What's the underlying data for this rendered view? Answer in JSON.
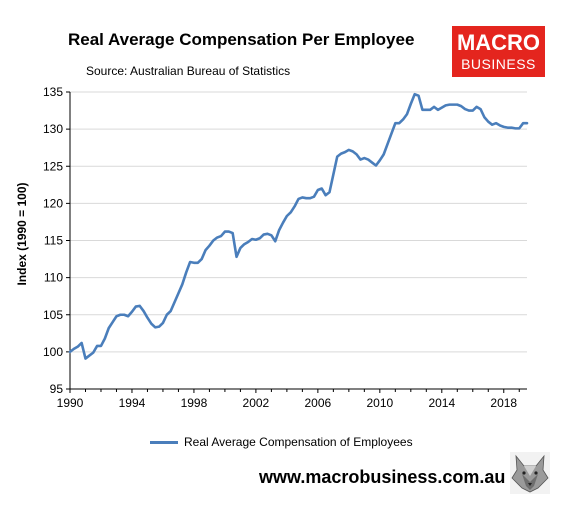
{
  "header": {
    "title": "Real Average Compensation Per Employee",
    "source": "Source: Australian Bureau of Statistics"
  },
  "logo": {
    "line1": "MACRO",
    "line2": "BUSINESS"
  },
  "footer": {
    "website": "www.macrobusiness.com.au"
  },
  "colors": {
    "series": "#4a7ebb",
    "brand": "#e4251e",
    "grid": "#d9d9d9"
  },
  "chart_data": {
    "type": "line",
    "title": "Real Average Compensation Per Employee",
    "ylabel": "Index (1990 = 100)",
    "xlabel": "",
    "xlim": [
      1990,
      2019.5
    ],
    "ylim": [
      95,
      135
    ],
    "x_ticks": [
      "1990",
      "1994",
      "1998",
      "2002",
      "2006",
      "2010",
      "2014",
      "2018"
    ],
    "y_ticks": [
      "95",
      "100",
      "105",
      "110",
      "115",
      "120",
      "125",
      "130",
      "135"
    ],
    "grid": "horizontal",
    "legend_position": "bottom",
    "series": [
      {
        "name": "Real Average Compensation of Employees",
        "color": "#4a7ebb",
        "points": [
          [
            1990.0,
            100.0
          ],
          [
            1990.25,
            100.4
          ],
          [
            1990.5,
            100.7
          ],
          [
            1990.75,
            101.2
          ],
          [
            1991.0,
            99.1
          ],
          [
            1991.25,
            99.5
          ],
          [
            1991.5,
            99.9
          ],
          [
            1991.75,
            100.8
          ],
          [
            1992.0,
            100.8
          ],
          [
            1992.25,
            101.8
          ],
          [
            1992.5,
            103.2
          ],
          [
            1992.75,
            104.0
          ],
          [
            1993.0,
            104.8
          ],
          [
            1993.25,
            105.0
          ],
          [
            1993.5,
            105.0
          ],
          [
            1993.75,
            104.8
          ],
          [
            1994.0,
            105.4
          ],
          [
            1994.25,
            106.1
          ],
          [
            1994.5,
            106.2
          ],
          [
            1994.75,
            105.5
          ],
          [
            1995.0,
            104.6
          ],
          [
            1995.25,
            103.8
          ],
          [
            1995.5,
            103.3
          ],
          [
            1995.75,
            103.4
          ],
          [
            1996.0,
            103.9
          ],
          [
            1996.25,
            105.0
          ],
          [
            1996.5,
            105.5
          ],
          [
            1996.75,
            106.7
          ],
          [
            1997.0,
            107.9
          ],
          [
            1997.25,
            109.1
          ],
          [
            1997.5,
            110.7
          ],
          [
            1997.75,
            112.1
          ],
          [
            1998.0,
            112.0
          ],
          [
            1998.25,
            112.0
          ],
          [
            1998.5,
            112.5
          ],
          [
            1998.75,
            113.7
          ],
          [
            1999.0,
            114.3
          ],
          [
            1999.25,
            115.0
          ],
          [
            1999.5,
            115.4
          ],
          [
            1999.75,
            115.6
          ],
          [
            2000.0,
            116.2
          ],
          [
            2000.25,
            116.2
          ],
          [
            2000.5,
            116.0
          ],
          [
            2000.75,
            112.8
          ],
          [
            2001.0,
            114.0
          ],
          [
            2001.25,
            114.5
          ],
          [
            2001.5,
            114.8
          ],
          [
            2001.75,
            115.2
          ],
          [
            2002.0,
            115.1
          ],
          [
            2002.25,
            115.3
          ],
          [
            2002.5,
            115.8
          ],
          [
            2002.75,
            115.9
          ],
          [
            2003.0,
            115.7
          ],
          [
            2003.25,
            114.9
          ],
          [
            2003.5,
            116.4
          ],
          [
            2003.75,
            117.4
          ],
          [
            2004.0,
            118.3
          ],
          [
            2004.25,
            118.8
          ],
          [
            2004.5,
            119.6
          ],
          [
            2004.75,
            120.6
          ],
          [
            2005.0,
            120.8
          ],
          [
            2005.25,
            120.7
          ],
          [
            2005.5,
            120.7
          ],
          [
            2005.75,
            120.9
          ],
          [
            2006.0,
            121.8
          ],
          [
            2006.25,
            122.0
          ],
          [
            2006.5,
            121.1
          ],
          [
            2006.75,
            121.5
          ],
          [
            2007.0,
            123.9
          ],
          [
            2007.25,
            126.3
          ],
          [
            2007.5,
            126.7
          ],
          [
            2007.75,
            126.9
          ],
          [
            2008.0,
            127.2
          ],
          [
            2008.25,
            127.0
          ],
          [
            2008.5,
            126.6
          ],
          [
            2008.75,
            125.9
          ],
          [
            2009.0,
            126.1
          ],
          [
            2009.25,
            125.9
          ],
          [
            2009.5,
            125.5
          ],
          [
            2009.75,
            125.1
          ],
          [
            2010.0,
            125.8
          ],
          [
            2010.25,
            126.6
          ],
          [
            2010.5,
            128.0
          ],
          [
            2010.75,
            129.4
          ],
          [
            2011.0,
            130.8
          ],
          [
            2011.25,
            130.8
          ],
          [
            2011.5,
            131.3
          ],
          [
            2011.75,
            132.0
          ],
          [
            2012.0,
            133.4
          ],
          [
            2012.25,
            134.7
          ],
          [
            2012.5,
            134.5
          ],
          [
            2012.75,
            132.6
          ],
          [
            2013.0,
            132.6
          ],
          [
            2013.25,
            132.6
          ],
          [
            2013.5,
            133.0
          ],
          [
            2013.75,
            132.6
          ],
          [
            2014.0,
            132.9
          ],
          [
            2014.25,
            133.2
          ],
          [
            2014.5,
            133.3
          ],
          [
            2014.75,
            133.3
          ],
          [
            2015.0,
            133.3
          ],
          [
            2015.25,
            133.1
          ],
          [
            2015.5,
            132.7
          ],
          [
            2015.75,
            132.5
          ],
          [
            2016.0,
            132.5
          ],
          [
            2016.25,
            133.0
          ],
          [
            2016.5,
            132.7
          ],
          [
            2016.75,
            131.6
          ],
          [
            2017.0,
            131.0
          ],
          [
            2017.25,
            130.6
          ],
          [
            2017.5,
            130.8
          ],
          [
            2017.75,
            130.5
          ],
          [
            2018.0,
            130.3
          ],
          [
            2018.25,
            130.2
          ],
          [
            2018.5,
            130.2
          ],
          [
            2018.75,
            130.1
          ],
          [
            2019.0,
            130.1
          ],
          [
            2019.25,
            130.8
          ],
          [
            2019.5,
            130.8
          ]
        ]
      }
    ]
  }
}
